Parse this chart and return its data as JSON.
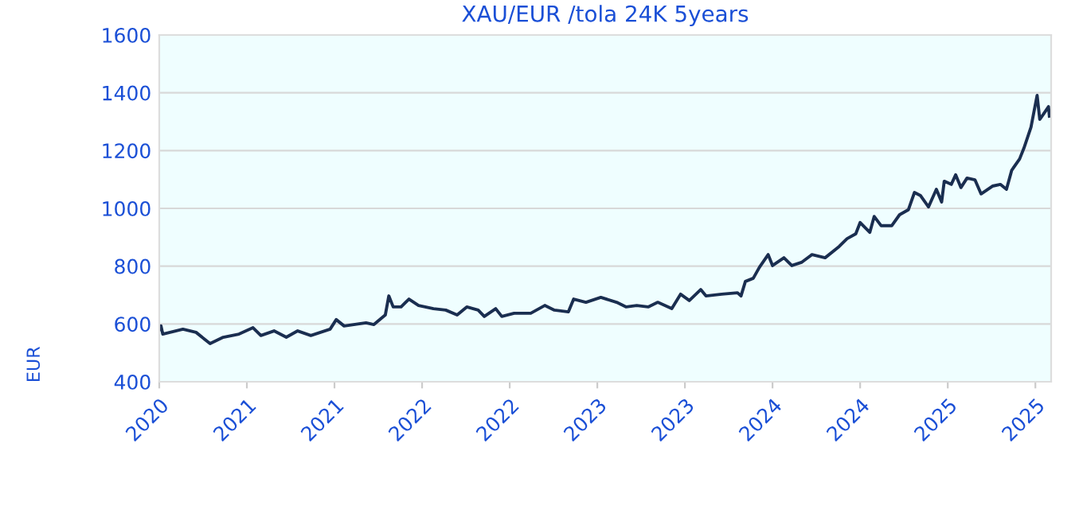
{
  "chart_data": {
    "type": "line",
    "title": "XAU/EUR /tola 24K 5years",
    "ylabel": "EUR",
    "x": [
      2020.0,
      2020.01,
      2020.02,
      2020.135,
      2020.21,
      2020.29,
      2020.365,
      2020.455,
      2020.535,
      2020.58,
      2020.655,
      2020.725,
      2020.79,
      2020.865,
      2020.975,
      2021.01,
      2021.055,
      2021.18,
      2021.225,
      2021.29,
      2021.31,
      2021.335,
      2021.38,
      2021.425,
      2021.48,
      2021.565,
      2021.635,
      2021.7,
      2021.755,
      2021.82,
      2021.855,
      2021.92,
      2021.955,
      2022.025,
      2022.12,
      2022.2,
      2022.255,
      2022.335,
      2022.365,
      2022.435,
      2022.52,
      2022.61,
      2022.665,
      2022.725,
      2022.79,
      2022.845,
      2022.925,
      2022.975,
      2023.025,
      2023.09,
      2023.12,
      2023.21,
      2023.3,
      2023.32,
      2023.345,
      2023.39,
      2023.425,
      2023.475,
      2023.5,
      2023.565,
      2023.61,
      2023.665,
      2023.725,
      2023.8,
      2023.88,
      2023.925,
      2023.975,
      2024.0,
      2024.055,
      2024.08,
      2024.12,
      2024.18,
      2024.225,
      2024.275,
      2024.31,
      2024.345,
      2024.39,
      2024.435,
      2024.465,
      2024.48,
      2024.52,
      2024.545,
      2024.575,
      2024.61,
      2024.655,
      2024.69,
      2024.755,
      2024.8,
      2024.835,
      2024.865,
      2024.91,
      2024.935,
      2024.975,
      2025.01,
      2025.025,
      2025.045,
      2025.075,
      2025.08
    ],
    "series": [
      {
        "color": "#1a2e50",
        "values": [
          580,
          593,
          565,
          582,
          571,
          532,
          554,
          565,
          587,
          560,
          576,
          554,
          576,
          560,
          582,
          615,
          593,
          604,
          598,
          631,
          697,
          659,
          659,
          686,
          664,
          653,
          648,
          631,
          659,
          648,
          626,
          653,
          626,
          637,
          637,
          664,
          648,
          642,
          686,
          675,
          692,
          675,
          659,
          664,
          659,
          675,
          653,
          703,
          681,
          719,
          697,
          703,
          708,
          697,
          747,
          758,
          796,
          840,
          802,
          829,
          802,
          813,
          840,
          829,
          868,
          895,
          912,
          951,
          917,
          972,
          940,
          940,
          978,
          995,
          1055,
          1044,
          1005,
          1066,
          1022,
          1094,
          1083,
          1116,
          1072,
          1105,
          1099,
          1050,
          1077,
          1083,
          1066,
          1132,
          1171,
          1209,
          1281,
          1391,
          1308,
          1325,
          1352,
          1319
        ]
      }
    ],
    "xlim": [
      2020,
      2025.09
    ],
    "xticks": [
      {
        "value": 2020,
        "label": "2020"
      },
      {
        "value": 2020.5,
        "label": "2021"
      },
      {
        "value": 2021,
        "label": "2021"
      },
      {
        "value": 2021.5,
        "label": "2022"
      },
      {
        "value": 2022,
        "label": "2022"
      },
      {
        "value": 2022.5,
        "label": "2023"
      },
      {
        "value": 2023,
        "label": "2023"
      },
      {
        "value": 2023.5,
        "label": "2024"
      },
      {
        "value": 2024,
        "label": "2024"
      },
      {
        "value": 2024.5,
        "label": "2025"
      },
      {
        "value": 2025,
        "label": "2025"
      }
    ],
    "ylim": [
      400,
      1600
    ],
    "yticks": [
      400,
      600,
      800,
      1000,
      1200,
      1400,
      1600
    ],
    "grid": "y",
    "legend": false,
    "marker": "none",
    "line_style": "solid"
  }
}
